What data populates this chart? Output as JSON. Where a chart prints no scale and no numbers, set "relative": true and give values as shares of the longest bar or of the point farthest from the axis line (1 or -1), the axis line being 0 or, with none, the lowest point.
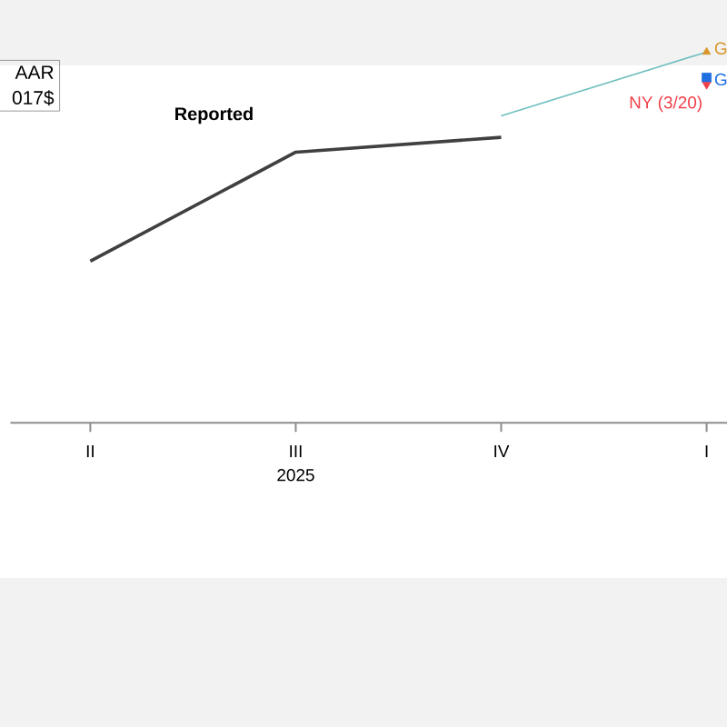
{
  "chart_data": {
    "type": "line",
    "relative": true,
    "xlabel": "2025",
    "annotations": [
      "AAR",
      "017$"
    ],
    "categories": [
      "II",
      "III",
      "IV",
      "I"
    ],
    "series": [
      {
        "name": "Reported",
        "color": "#404040",
        "values": [
          0.436,
          0.73,
          0.77,
          null
        ]
      },
      {
        "color": "#6fbfbf",
        "values": [
          null,
          null,
          0.828,
          1.0
        ]
      },
      {
        "name": "G",
        "type": "scatter",
        "marker": "triangle",
        "color": "#d9962b",
        "values": [
          null,
          null,
          null,
          1.0
        ]
      },
      {
        "name": "G",
        "type": "scatter",
        "marker": "square",
        "color": "#1f6fe0",
        "values": [
          null,
          null,
          null,
          0.931
        ]
      },
      {
        "name": "NY (3/20)",
        "type": "scatter",
        "marker": "triangle",
        "color": "#f0404a",
        "values": [
          null,
          null,
          null,
          0.912
        ]
      }
    ]
  }
}
